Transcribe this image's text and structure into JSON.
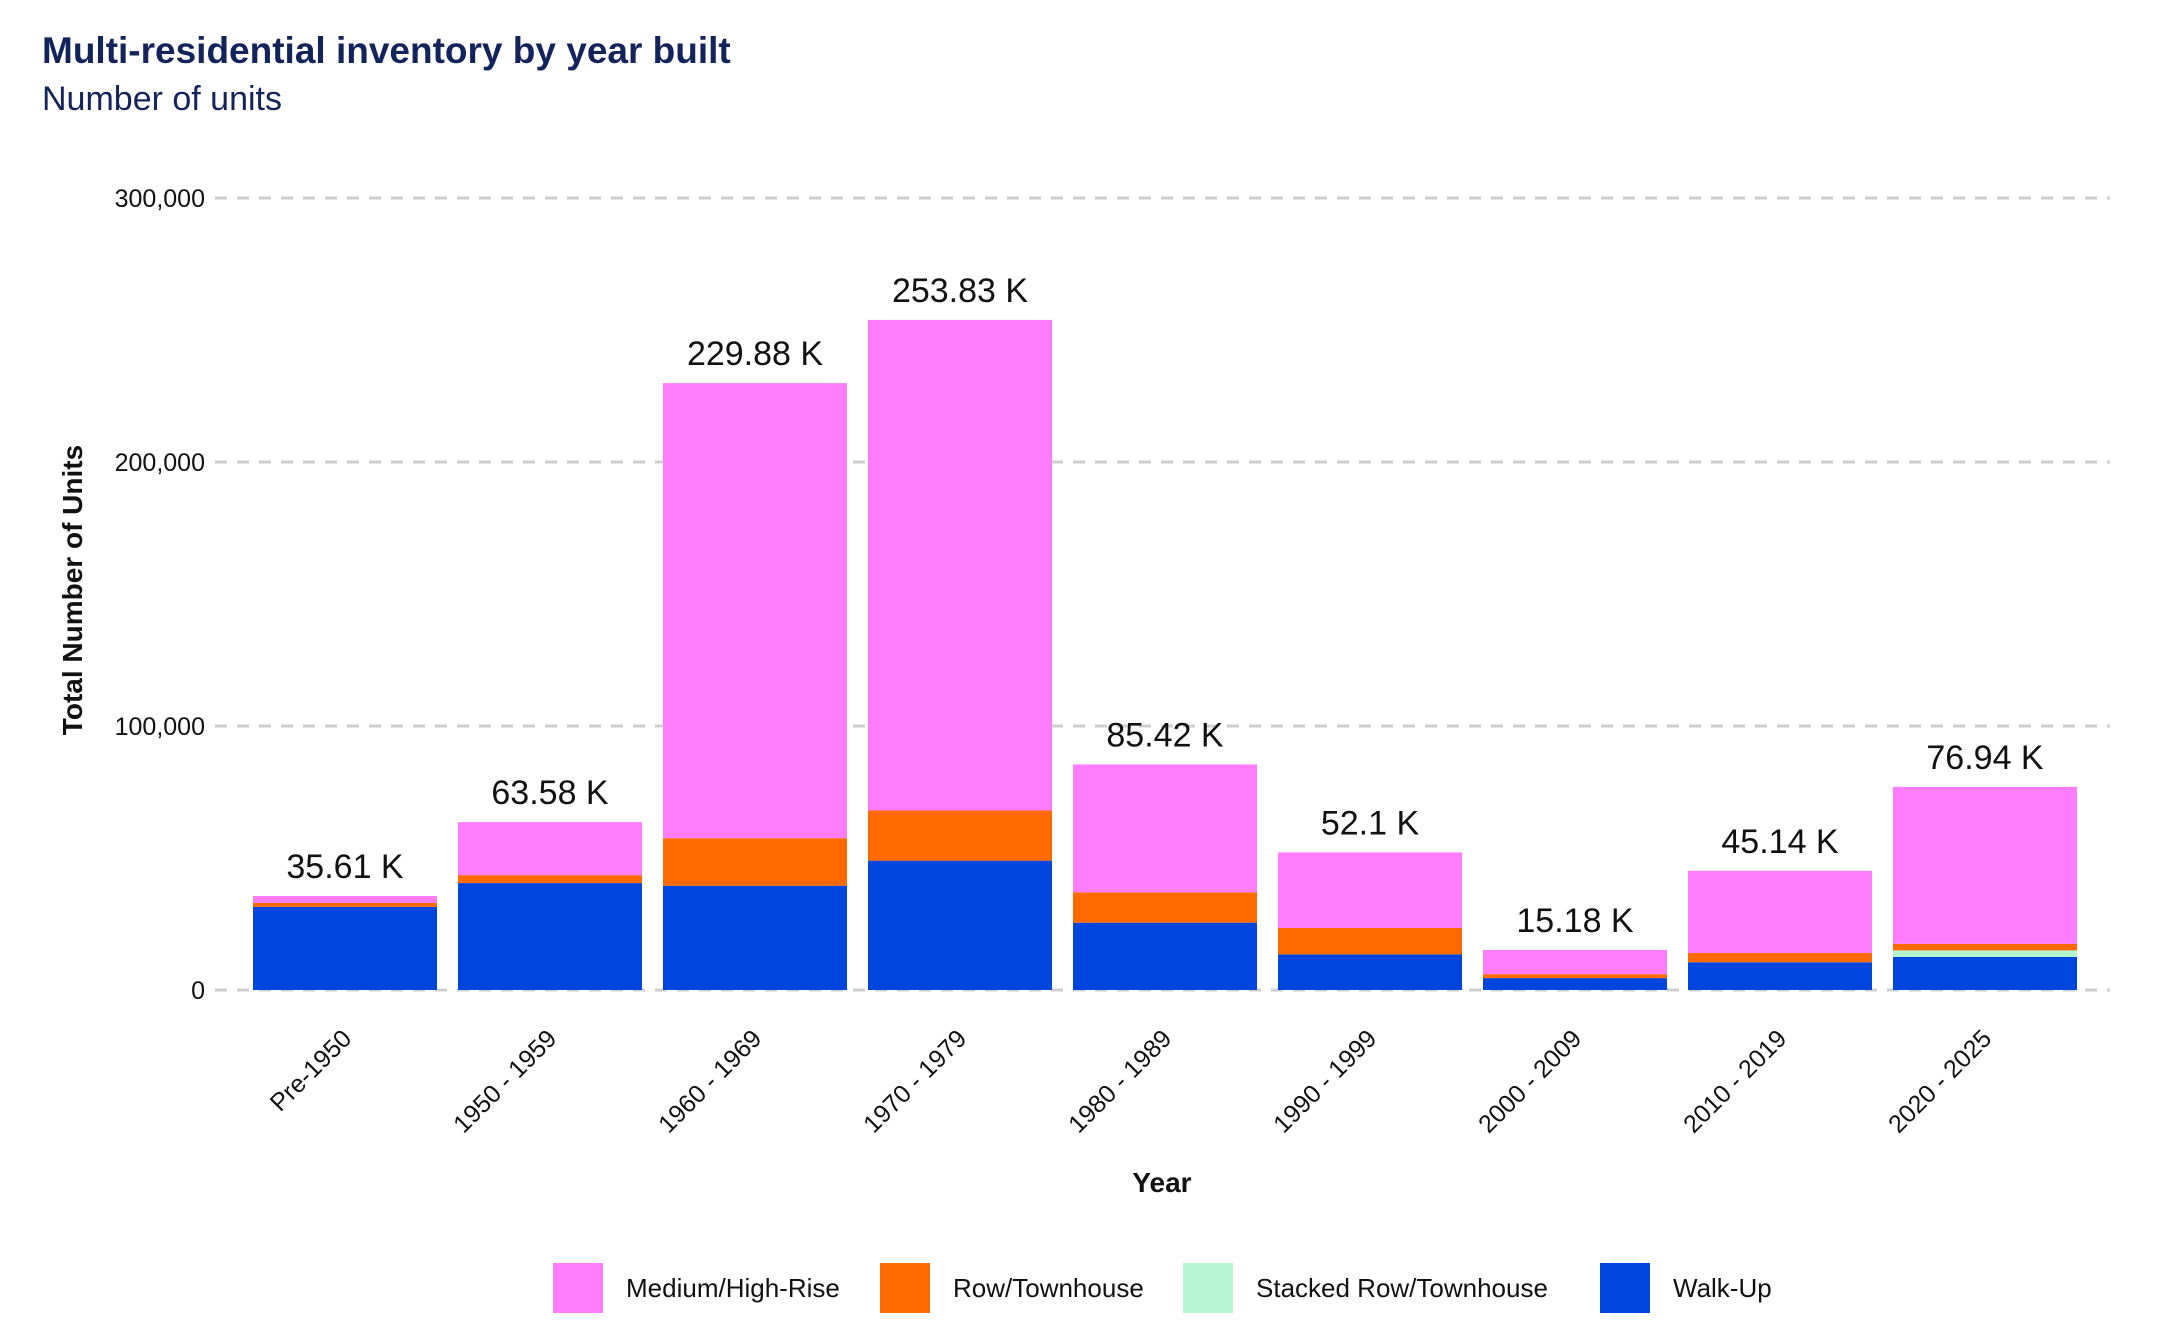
{
  "title": "Multi-residential inventory by year built",
  "subtitle": "Number of units",
  "chart_data": {
    "type": "bar",
    "stacked": true,
    "categories": [
      "Pre-1950",
      "1950 - 1959",
      "1960 - 1969",
      "1970 - 1979",
      "1980 - 1989",
      "1990 - 1999",
      "2000 - 2009",
      "2010 - 2019",
      "2020 - 2025"
    ],
    "series": [
      {
        "name": "Walk-Up",
        "color": "#0046de",
        "values": [
          31500,
          40500,
          39500,
          49000,
          25500,
          13500,
          4500,
          10500,
          12500
        ]
      },
      {
        "name": "Stacked Row/Townhouse",
        "color": "#b7f5d2",
        "values": [
          0,
          0,
          0,
          0,
          0,
          0,
          0,
          0,
          2500
        ]
      },
      {
        "name": "Row/Townhouse",
        "color": "#ff6a00",
        "values": [
          1500,
          3000,
          18000,
          19000,
          11500,
          10000,
          1500,
          3500,
          2500
        ]
      },
      {
        "name": "Medium/High-Rise",
        "color": "#ff7cff",
        "values": [
          2610,
          20080,
          172380,
          185830,
          48420,
          28600,
          9180,
          31140,
          59440
        ]
      }
    ],
    "legend_order": [
      "Medium/High-Rise",
      "Row/Townhouse",
      "Stacked Row/Townhouse",
      "Walk-Up"
    ],
    "totals_labels": [
      "35.61 K",
      "63.58 K",
      "229.88 K",
      "253.83 K",
      "85.42 K",
      "52.1 K",
      "15.18 K",
      "45.14 K",
      "76.94 K"
    ],
    "totals": [
      35610,
      63580,
      229880,
      253830,
      85420,
      52100,
      15180,
      45140,
      76940
    ],
    "xlabel": "Year",
    "ylabel": "Total Number of Units",
    "ylim": [
      0,
      300000
    ],
    "yticks": [
      0,
      100000,
      200000,
      300000
    ],
    "ytick_labels": [
      "0",
      "100,000",
      "200,000",
      "300,000"
    ],
    "grid": true,
    "legend_position": "bottom"
  }
}
